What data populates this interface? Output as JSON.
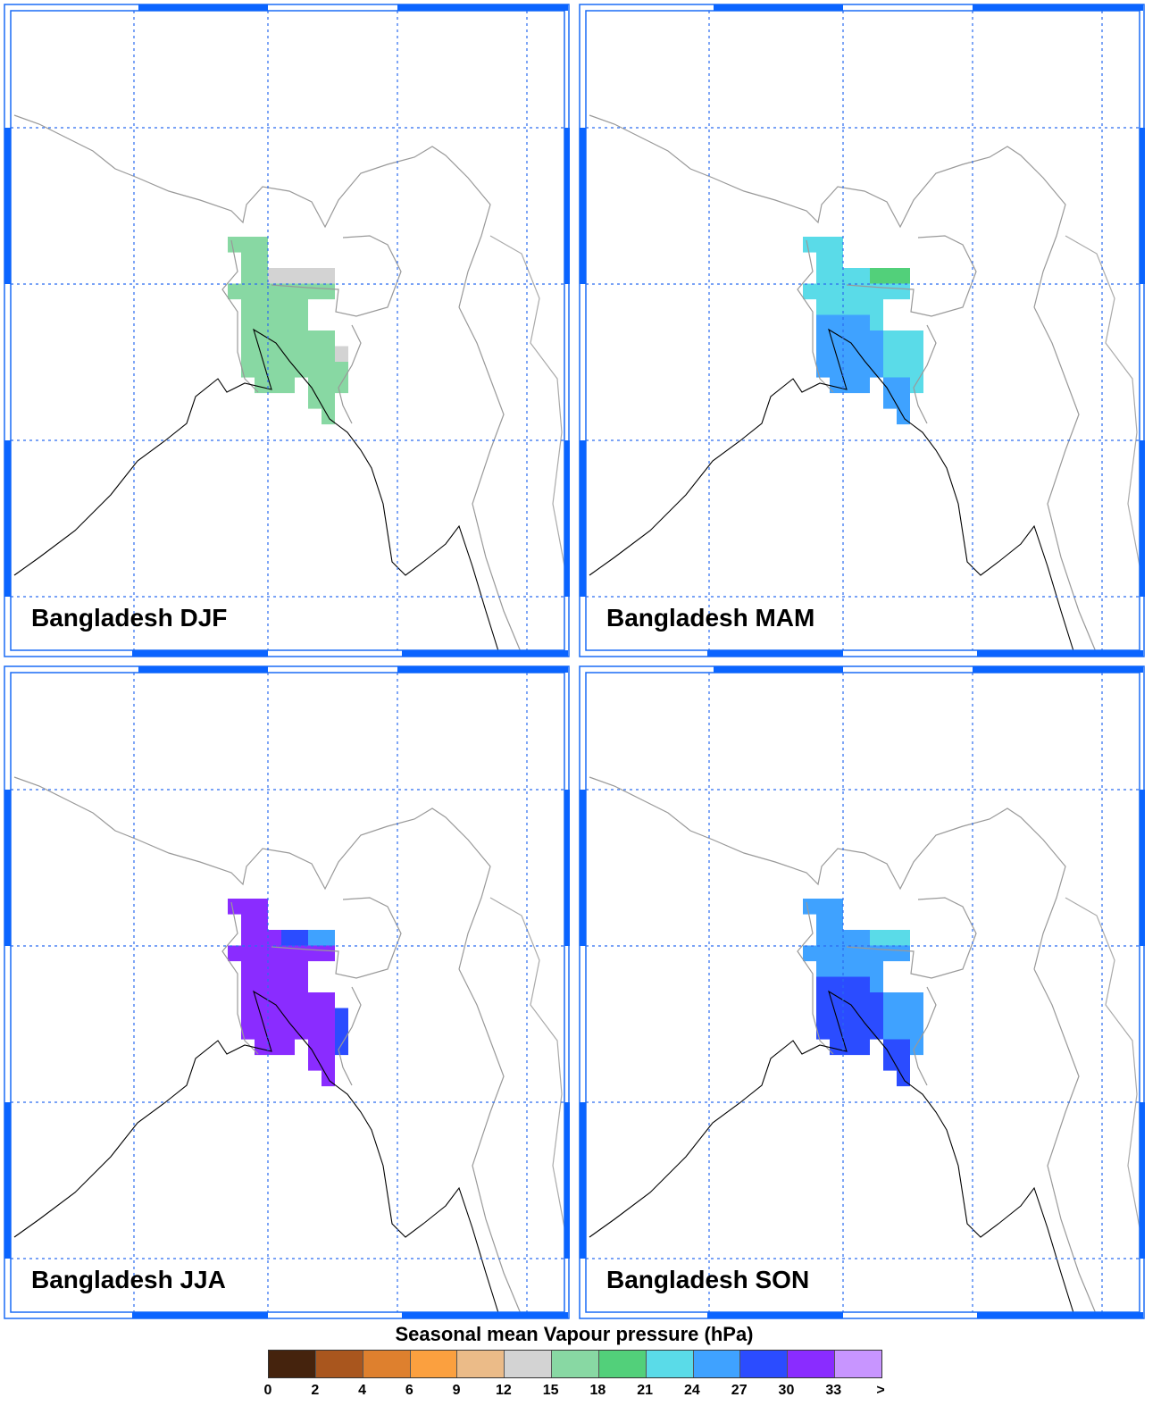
{
  "legend": {
    "title": "Seasonal mean Vapour pressure (hPa)",
    "labels": [
      "0",
      "2",
      "4",
      "6",
      "9",
      "12",
      "15",
      "18",
      "21",
      "24",
      "27",
      "30",
      "33",
      ">"
    ],
    "colors": [
      "#45230d",
      "#a9561e",
      "#de802e",
      "#fba03f",
      "#ebbb88",
      "#d3d3d3",
      "#88d8a3",
      "#52d07a",
      "#5adbe8",
      "#3fa2ff",
      "#2b4cff",
      "#8a2cff",
      "#c895ff"
    ]
  },
  "panels": [
    {
      "title": "Bangladesh DJF",
      "cells": [
        [
          0,
          0,
          2,
          6
        ],
        [
          1,
          1,
          2,
          6
        ],
        [
          2,
          1,
          2,
          6
        ],
        [
          2,
          3,
          7,
          5
        ],
        [
          3,
          0,
          7,
          6
        ],
        [
          4,
          1,
          5,
          6
        ],
        [
          5,
          1,
          5,
          6
        ],
        [
          6,
          1,
          7,
          6
        ],
        [
          7,
          1,
          7,
          6
        ],
        [
          7,
          8,
          8,
          5
        ],
        [
          8,
          1,
          8,
          6
        ],
        [
          9,
          2,
          4,
          6
        ],
        [
          9,
          6,
          8,
          6
        ],
        [
          10,
          6,
          7,
          6
        ],
        [
          11,
          7,
          7,
          6
        ]
      ]
    },
    {
      "title": "Bangladesh MAM",
      "cells": [
        [
          0,
          0,
          2,
          8
        ],
        [
          1,
          1,
          2,
          8
        ],
        [
          2,
          1,
          4,
          8
        ],
        [
          2,
          5,
          7,
          7
        ],
        [
          3,
          0,
          7,
          8
        ],
        [
          4,
          1,
          5,
          8
        ],
        [
          5,
          1,
          4,
          9
        ],
        [
          5,
          5,
          5,
          8
        ],
        [
          6,
          1,
          5,
          9
        ],
        [
          6,
          6,
          8,
          8
        ],
        [
          7,
          1,
          5,
          9
        ],
        [
          7,
          6,
          8,
          8
        ],
        [
          8,
          1,
          5,
          9
        ],
        [
          8,
          6,
          8,
          8
        ],
        [
          9,
          2,
          4,
          9
        ],
        [
          9,
          6,
          7,
          9
        ],
        [
          9,
          8,
          8,
          8
        ],
        [
          10,
          6,
          7,
          9
        ],
        [
          11,
          7,
          7,
          9
        ]
      ]
    },
    {
      "title": "Bangladesh JJA",
      "cells": [
        [
          0,
          0,
          2,
          11
        ],
        [
          1,
          1,
          2,
          11
        ],
        [
          2,
          1,
          3,
          11
        ],
        [
          2,
          4,
          5,
          10
        ],
        [
          2,
          6,
          7,
          9
        ],
        [
          3,
          0,
          7,
          11
        ],
        [
          4,
          1,
          5,
          11
        ],
        [
          5,
          1,
          5,
          11
        ],
        [
          6,
          1,
          7,
          11
        ],
        [
          7,
          1,
          7,
          11
        ],
        [
          7,
          8,
          8,
          10
        ],
        [
          8,
          1,
          7,
          11
        ],
        [
          8,
          8,
          8,
          10
        ],
        [
          9,
          2,
          4,
          11
        ],
        [
          9,
          6,
          7,
          11
        ],
        [
          9,
          8,
          8,
          10
        ],
        [
          10,
          6,
          7,
          11
        ],
        [
          11,
          7,
          7,
          11
        ]
      ]
    },
    {
      "title": "Bangladesh SON",
      "cells": [
        [
          0,
          0,
          2,
          9
        ],
        [
          1,
          1,
          2,
          9
        ],
        [
          2,
          1,
          4,
          9
        ],
        [
          2,
          5,
          7,
          8
        ],
        [
          3,
          0,
          7,
          9
        ],
        [
          4,
          1,
          5,
          9
        ],
        [
          5,
          1,
          4,
          10
        ],
        [
          5,
          5,
          5,
          9
        ],
        [
          6,
          1,
          5,
          10
        ],
        [
          6,
          6,
          8,
          9
        ],
        [
          7,
          1,
          5,
          10
        ],
        [
          7,
          6,
          8,
          9
        ],
        [
          8,
          1,
          5,
          10
        ],
        [
          8,
          6,
          8,
          9
        ],
        [
          9,
          2,
          4,
          10
        ],
        [
          9,
          6,
          7,
          10
        ],
        [
          9,
          8,
          8,
          9
        ],
        [
          10,
          6,
          7,
          10
        ],
        [
          11,
          7,
          7,
          10
        ]
      ]
    }
  ]
}
